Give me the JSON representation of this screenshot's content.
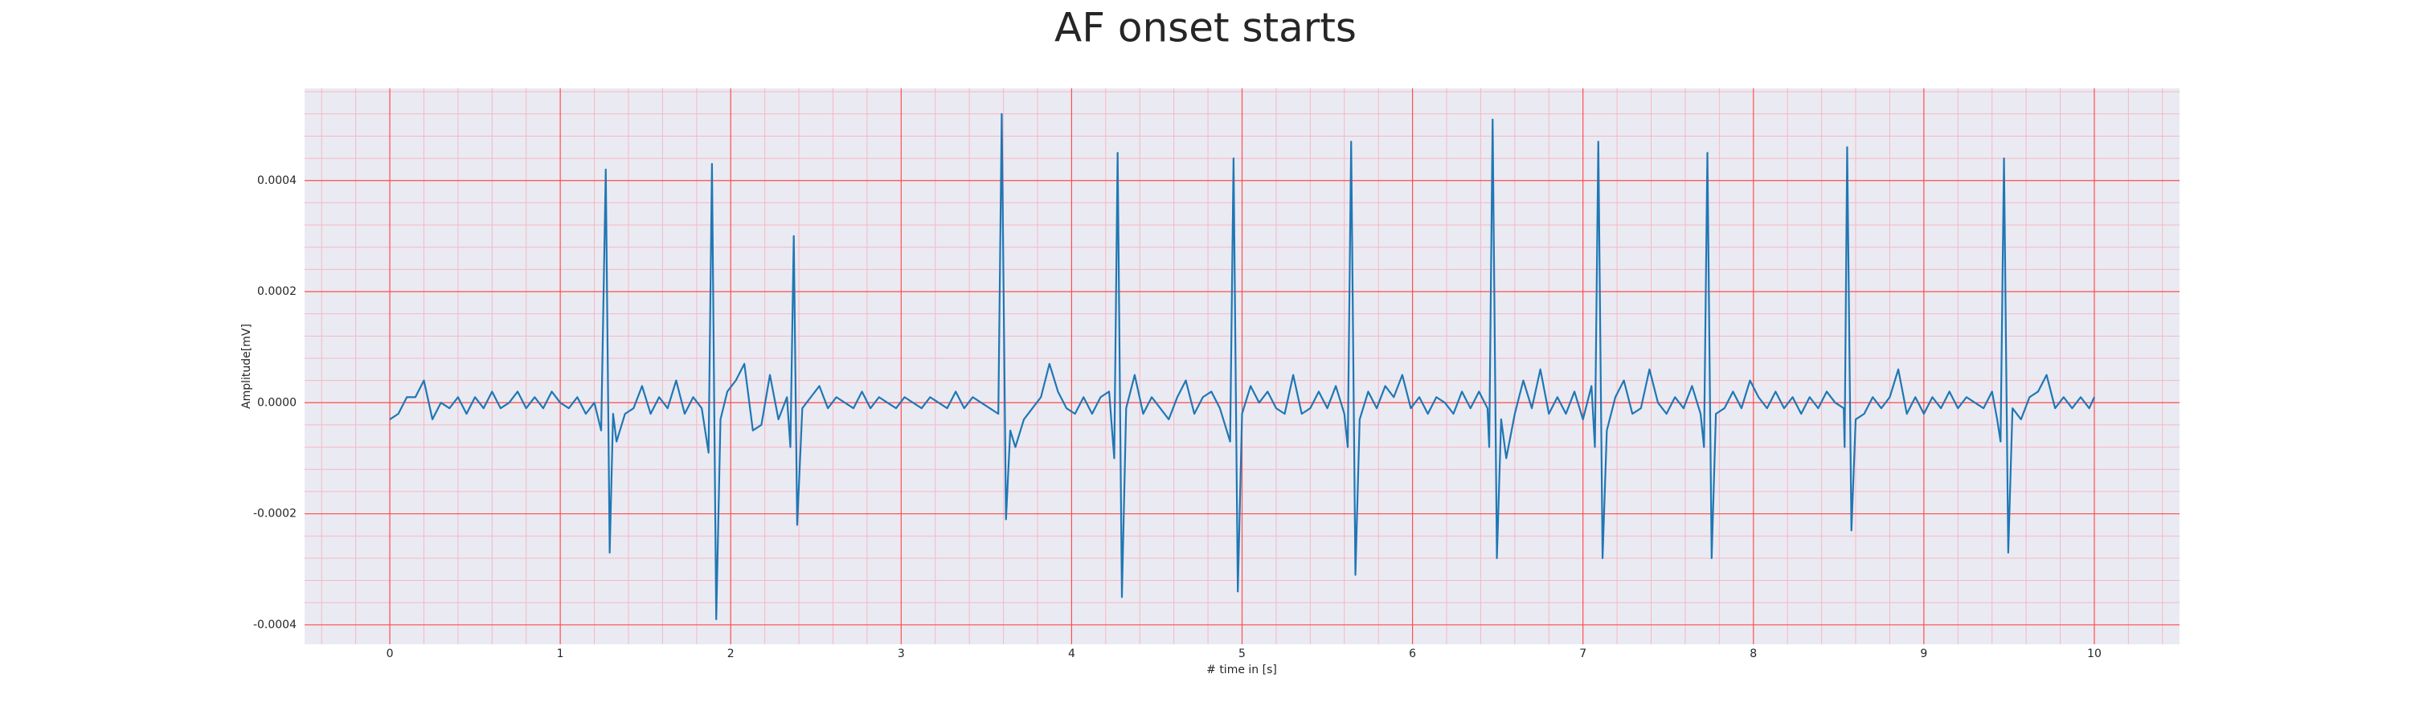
{
  "chart_data": {
    "type": "line",
    "title": "AF onset starts",
    "x_label": "# time in [s]",
    "y_label": "Amplitude[mV]",
    "color": "#1f77b4",
    "background": "#eaeaf2",
    "grid": true,
    "grid_color": "#ff4d4d",
    "minor_grid_color": "#f5b8c4",
    "minor_divisions": 5,
    "xlim": [
      -0.5,
      10.5
    ],
    "ylim": [
      -0.000435,
      0.000566
    ],
    "xticks": [
      0,
      1,
      2,
      3,
      4,
      5,
      6,
      7,
      8,
      9,
      10
    ],
    "yticks": [
      -0.0004,
      -0.0002,
      {
        "value": 0,
        "label": "0.0000"
      },
      0.0002,
      0.0004
    ],
    "x": [
      0.0,
      0.05,
      0.1,
      0.15,
      0.2,
      0.25,
      0.3,
      0.35,
      0.4,
      0.45,
      0.5,
      0.55,
      0.6,
      0.65,
      0.7,
      0.75,
      0.8,
      0.85,
      0.9,
      0.95,
      1.0,
      1.05,
      1.1,
      1.15,
      1.2,
      1.24,
      1.267,
      1.29,
      1.31,
      1.33,
      1.38,
      1.43,
      1.48,
      1.53,
      1.58,
      1.63,
      1.68,
      1.73,
      1.78,
      1.83,
      1.87,
      1.89,
      1.915,
      1.94,
      1.98,
      2.03,
      2.08,
      2.13,
      2.18,
      2.23,
      2.28,
      2.33,
      2.35,
      2.37,
      2.39,
      2.42,
      2.47,
      2.52,
      2.57,
      2.62,
      2.67,
      2.72,
      2.77,
      2.82,
      2.87,
      2.92,
      2.97,
      3.02,
      3.07,
      3.12,
      3.17,
      3.22,
      3.27,
      3.32,
      3.37,
      3.42,
      3.47,
      3.52,
      3.57,
      3.59,
      3.615,
      3.64,
      3.67,
      3.72,
      3.77,
      3.82,
      3.87,
      3.92,
      3.97,
      4.02,
      4.07,
      4.12,
      4.17,
      4.22,
      4.25,
      4.27,
      4.295,
      4.32,
      4.37,
      4.42,
      4.47,
      4.52,
      4.57,
      4.62,
      4.67,
      4.72,
      4.77,
      4.82,
      4.87,
      4.93,
      4.95,
      4.975,
      5.0,
      5.05,
      5.1,
      5.15,
      5.2,
      5.25,
      5.3,
      5.35,
      5.4,
      5.45,
      5.5,
      5.55,
      5.6,
      5.62,
      5.64,
      5.665,
      5.69,
      5.74,
      5.79,
      5.84,
      5.89,
      5.94,
      5.99,
      6.04,
      6.09,
      6.14,
      6.19,
      6.24,
      6.29,
      6.34,
      6.39,
      6.44,
      6.45,
      6.47,
      6.495,
      6.52,
      6.55,
      6.6,
      6.65,
      6.7,
      6.75,
      6.8,
      6.85,
      6.9,
      6.95,
      7.0,
      7.05,
      7.07,
      7.09,
      7.115,
      7.14,
      7.19,
      7.24,
      7.29,
      7.34,
      7.39,
      7.44,
      7.49,
      7.54,
      7.59,
      7.64,
      7.69,
      7.71,
      7.73,
      7.755,
      7.78,
      7.83,
      7.88,
      7.93,
      7.98,
      8.03,
      8.08,
      8.13,
      8.18,
      8.23,
      8.28,
      8.33,
      8.38,
      8.43,
      8.48,
      8.53,
      8.535,
      8.55,
      8.575,
      8.6,
      8.65,
      8.7,
      8.75,
      8.8,
      8.85,
      8.9,
      8.95,
      9.0,
      9.05,
      9.1,
      9.15,
      9.2,
      9.25,
      9.3,
      9.35,
      9.4,
      9.43,
      9.45,
      9.47,
      9.495,
      9.52,
      9.57,
      9.62,
      9.67,
      9.72,
      9.77,
      9.82,
      9.87,
      9.92,
      9.97,
      10.0
    ],
    "values": [
      -3e-05,
      -2e-05,
      1e-05,
      1e-05,
      4e-05,
      -3e-05,
      0,
      -1e-05,
      1e-05,
      -2e-05,
      1e-05,
      -1e-05,
      2e-05,
      -1e-05,
      0,
      2e-05,
      -1e-05,
      1e-05,
      -1e-05,
      2e-05,
      0,
      -1e-05,
      1e-05,
      -2e-05,
      0,
      -5e-05,
      0.00042,
      -0.00027,
      -2e-05,
      -7e-05,
      -2e-05,
      -1e-05,
      3e-05,
      -2e-05,
      1e-05,
      -1e-05,
      4e-05,
      -2e-05,
      1e-05,
      -1e-05,
      -9e-05,
      0.00043,
      -0.00039,
      -3e-05,
      2e-05,
      4e-05,
      7e-05,
      -5e-05,
      -4e-05,
      5e-05,
      -3e-05,
      1e-05,
      -8e-05,
      0.0003,
      -0.00022,
      -1e-05,
      1e-05,
      3e-05,
      -1e-05,
      1e-05,
      0,
      -1e-05,
      2e-05,
      -1e-05,
      1e-05,
      0,
      -1e-05,
      1e-05,
      0,
      -1e-05,
      1e-05,
      0,
      -1e-05,
      2e-05,
      -1e-05,
      1e-05,
      0,
      -1e-05,
      -2e-05,
      0.00052,
      -0.00021,
      -5e-05,
      -8e-05,
      -3e-05,
      -1e-05,
      1e-05,
      7e-05,
      2e-05,
      -1e-05,
      -2e-05,
      1e-05,
      -2e-05,
      1e-05,
      2e-05,
      -0.0001,
      0.00045,
      -0.00035,
      -1e-05,
      5e-05,
      -2e-05,
      1e-05,
      -1e-05,
      -3e-05,
      1e-05,
      4e-05,
      -2e-05,
      1e-05,
      2e-05,
      -1e-05,
      -7e-05,
      0.00044,
      -0.00034,
      -2e-05,
      3e-05,
      0,
      2e-05,
      -1e-05,
      -2e-05,
      5e-05,
      -2e-05,
      -1e-05,
      2e-05,
      -1e-05,
      3e-05,
      -2e-05,
      -8e-05,
      0.00047,
      -0.00031,
      -3e-05,
      2e-05,
      -1e-05,
      3e-05,
      1e-05,
      5e-05,
      -1e-05,
      1e-05,
      -2e-05,
      1e-05,
      0,
      -2e-05,
      2e-05,
      -1e-05,
      2e-05,
      -1e-05,
      -8e-05,
      0.00051,
      -0.00028,
      -3e-05,
      -0.0001,
      -2e-05,
      4e-05,
      -1e-05,
      6e-05,
      -2e-05,
      1e-05,
      -2e-05,
      2e-05,
      -3e-05,
      3e-05,
      -8e-05,
      0.00047,
      -0.00028,
      -5e-05,
      1e-05,
      4e-05,
      -2e-05,
      -1e-05,
      6e-05,
      0,
      -2e-05,
      1e-05,
      -1e-05,
      3e-05,
      -2e-05,
      -8e-05,
      0.00045,
      -0.00028,
      -2e-05,
      -1e-05,
      2e-05,
      -1e-05,
      4e-05,
      1e-05,
      -1e-05,
      2e-05,
      -1e-05,
      1e-05,
      -2e-05,
      1e-05,
      -1e-05,
      2e-05,
      0,
      -1e-05,
      -8e-05,
      0.00046,
      -0.00023,
      -3e-05,
      -2e-05,
      1e-05,
      -1e-05,
      1e-05,
      6e-05,
      -2e-05,
      1e-05,
      -2e-05,
      1e-05,
      -1e-05,
      2e-05,
      -1e-05,
      1e-05,
      0,
      -1e-05,
      2e-05,
      -3e-05,
      -7e-05,
      0.00044,
      -0.00027,
      -1e-05,
      -3e-05,
      1e-05,
      2e-05,
      5e-05,
      -1e-05,
      1e-05,
      -1e-05,
      1e-05,
      -1e-05,
      1e-05
    ]
  }
}
